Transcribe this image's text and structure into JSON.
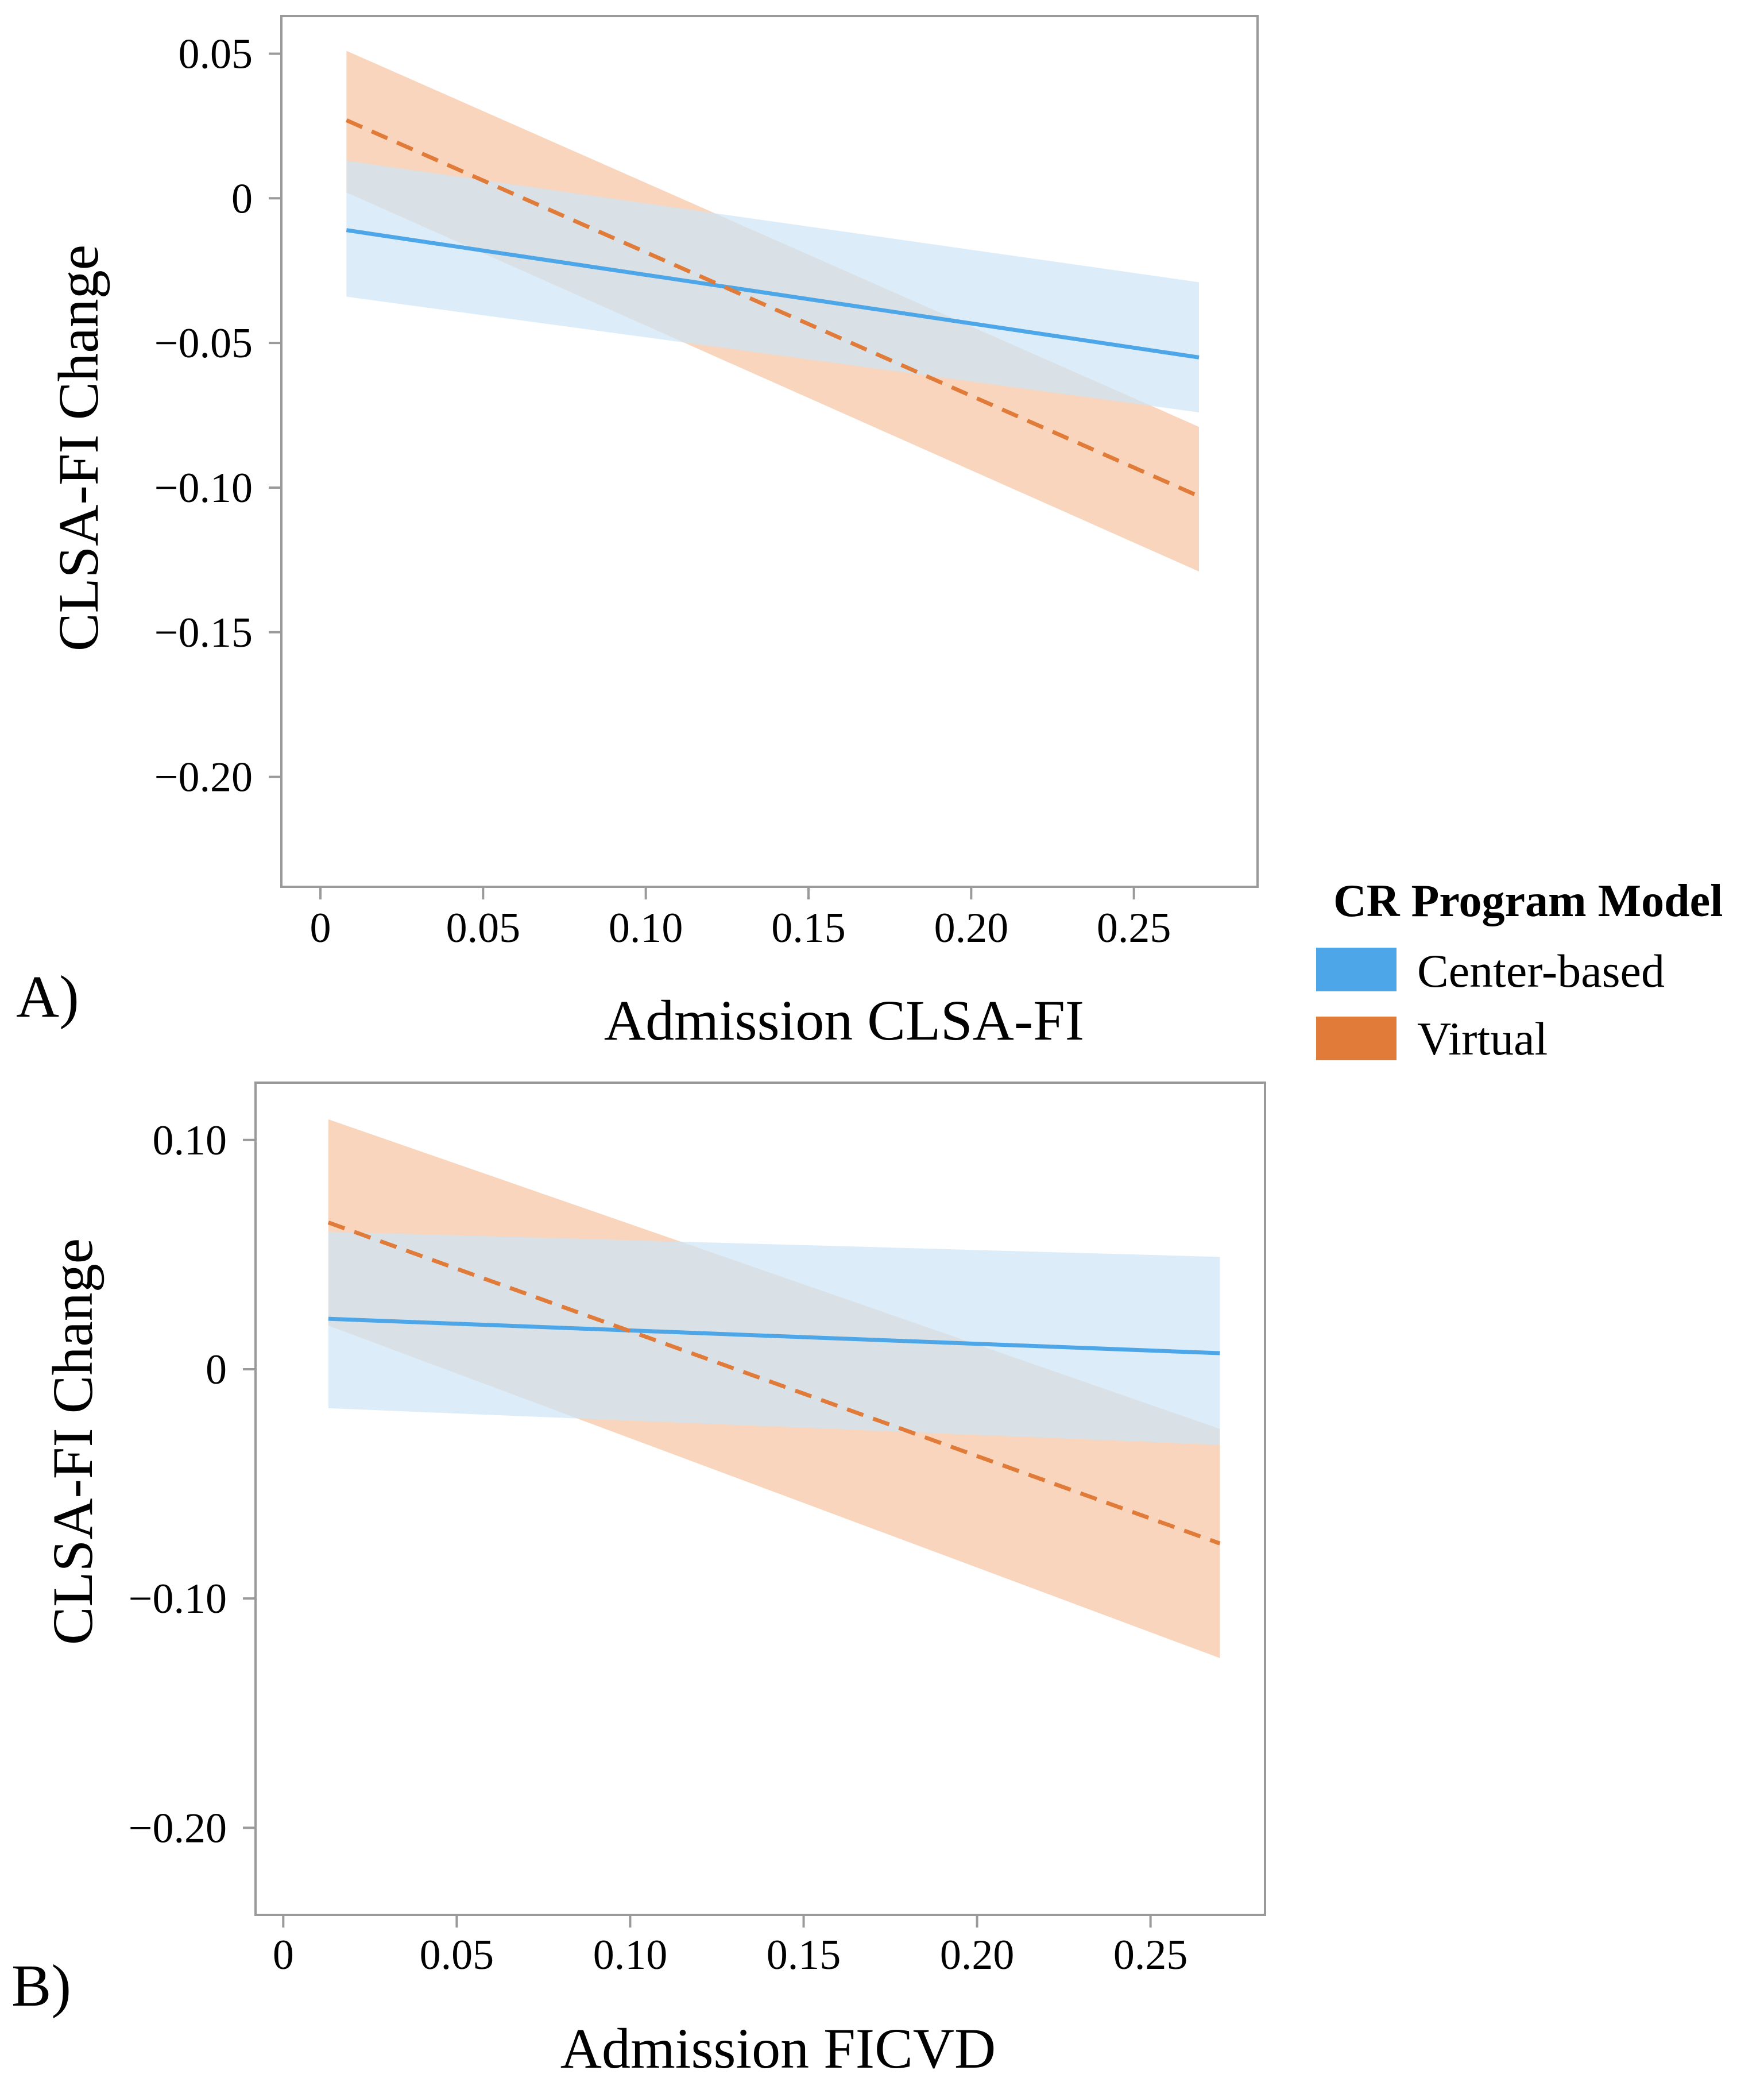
{
  "legend": {
    "title": "CR Program Model",
    "entries": [
      {
        "label": "Center-based",
        "color": "#4DA6E8"
      },
      {
        "label": "Virtual",
        "color": "#E07B39"
      }
    ]
  },
  "colors": {
    "center_line": "#4DA6E8",
    "center_band": "#CFE6F7",
    "virtual_line": "#E07B39",
    "virtual_band": "#F6C7A5",
    "axis": "#9a9a9a"
  },
  "chart_data": [
    {
      "type": "line",
      "panel_label": "A)",
      "title": "",
      "xlabel": "Admission CLSA-FI",
      "ylabel": "CLSA-FI Change",
      "xlim": [
        -0.012,
        0.288
      ],
      "ylim": [
        -0.238,
        0.063
      ],
      "x_ticks": [
        0,
        0.05,
        0.1,
        0.15,
        0.2,
        0.25
      ],
      "x_tick_labels": [
        "0",
        "0.05",
        "0.10",
        "0.15",
        "0.20",
        "0.25"
      ],
      "y_ticks": [
        0.05,
        0,
        -0.05,
        -0.1,
        -0.15,
        -0.2
      ],
      "y_tick_labels": [
        "0.05",
        "0",
        "−0.05",
        "−0.10",
        "−0.15",
        "−0.20"
      ],
      "grid": false,
      "series": [
        {
          "name": "Center-based",
          "x": [
            0.008,
            0.27
          ],
          "y": [
            -0.011,
            -0.055
          ],
          "ci_lower": [
            -0.034,
            -0.074
          ],
          "ci_upper": [
            0.013,
            -0.029
          ],
          "linestyle": "solid"
        },
        {
          "name": "Virtual",
          "x": [
            0.008,
            0.27
          ],
          "y": [
            0.027,
            -0.103
          ],
          "ci_lower": [
            0.002,
            -0.129
          ],
          "ci_upper": [
            0.051,
            -0.079
          ],
          "linestyle": "dashed"
        }
      ]
    },
    {
      "type": "line",
      "panel_label": "B)",
      "title": "",
      "xlabel": "Admission FICVD",
      "ylabel": "CLSA-FI Change",
      "xlim": [
        -0.008,
        0.283
      ],
      "ylim": [
        -0.238,
        0.125
      ],
      "x_ticks": [
        0,
        0.05,
        0.1,
        0.15,
        0.2,
        0.25
      ],
      "x_tick_labels": [
        "0",
        "0.05",
        "0.10",
        "0.15",
        "0.20",
        "0.25"
      ],
      "y_ticks": [
        0.1,
        0,
        -0.1,
        -0.2
      ],
      "y_tick_labels": [
        "0.10",
        "0",
        "−0.10",
        "−0.20"
      ],
      "grid": false,
      "series": [
        {
          "name": "Center-based",
          "x": [
            0.013,
            0.27
          ],
          "y": [
            0.022,
            0.007
          ],
          "ci_lower": [
            -0.017,
            -0.033
          ],
          "ci_upper": [
            0.06,
            0.049
          ],
          "linestyle": "solid"
        },
        {
          "name": "Virtual",
          "x": [
            0.013,
            0.27
          ],
          "y": [
            0.064,
            -0.076
          ],
          "ci_lower": [
            0.019,
            -0.126
          ],
          "ci_upper": [
            0.109,
            -0.026
          ],
          "linestyle": "dashed"
        }
      ]
    }
  ]
}
